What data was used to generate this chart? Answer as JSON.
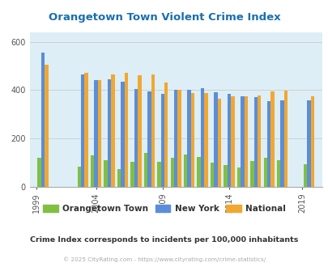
{
  "title": "Orangetown Town Violent Crime Index",
  "title_color": "#1a6faf",
  "subtitle": "Crime Index corresponds to incidents per 100,000 inhabitants",
  "footer": "© 2025 CityRating.com - https://www.cityrating.com/crime-statistics/",
  "years": [
    2000,
    2003,
    2004,
    2005,
    2006,
    2007,
    2008,
    2009,
    2010,
    2011,
    2012,
    2013,
    2014,
    2015,
    2016,
    2017,
    2018,
    2020
  ],
  "xtick_years": [
    1999,
    2004,
    2009,
    2014,
    2019
  ],
  "orangetown": [
    120,
    85,
    130,
    110,
    75,
    105,
    140,
    105,
    120,
    135,
    125,
    100,
    90,
    80,
    108,
    120,
    110,
    95
  ],
  "new_york": [
    555,
    465,
    440,
    445,
    435,
    405,
    395,
    385,
    400,
    400,
    408,
    390,
    385,
    375,
    370,
    355,
    358,
    358
  ],
  "national": [
    505,
    470,
    440,
    465,
    470,
    460,
    465,
    430,
    402,
    387,
    387,
    365,
    375,
    373,
    378,
    395,
    398,
    373
  ],
  "bar_width": 0.27,
  "ylim": [
    0,
    640
  ],
  "yticks": [
    0,
    200,
    400,
    600
  ],
  "bg_color": "#ddeef6",
  "green_color": "#80c040",
  "blue_color": "#5b8dd9",
  "orange_color": "#f0a830",
  "grid_color": "#cccccc",
  "legend_label_color": "#333333",
  "subtitle_color": "#333333",
  "footer_color": "#aaaaaa"
}
